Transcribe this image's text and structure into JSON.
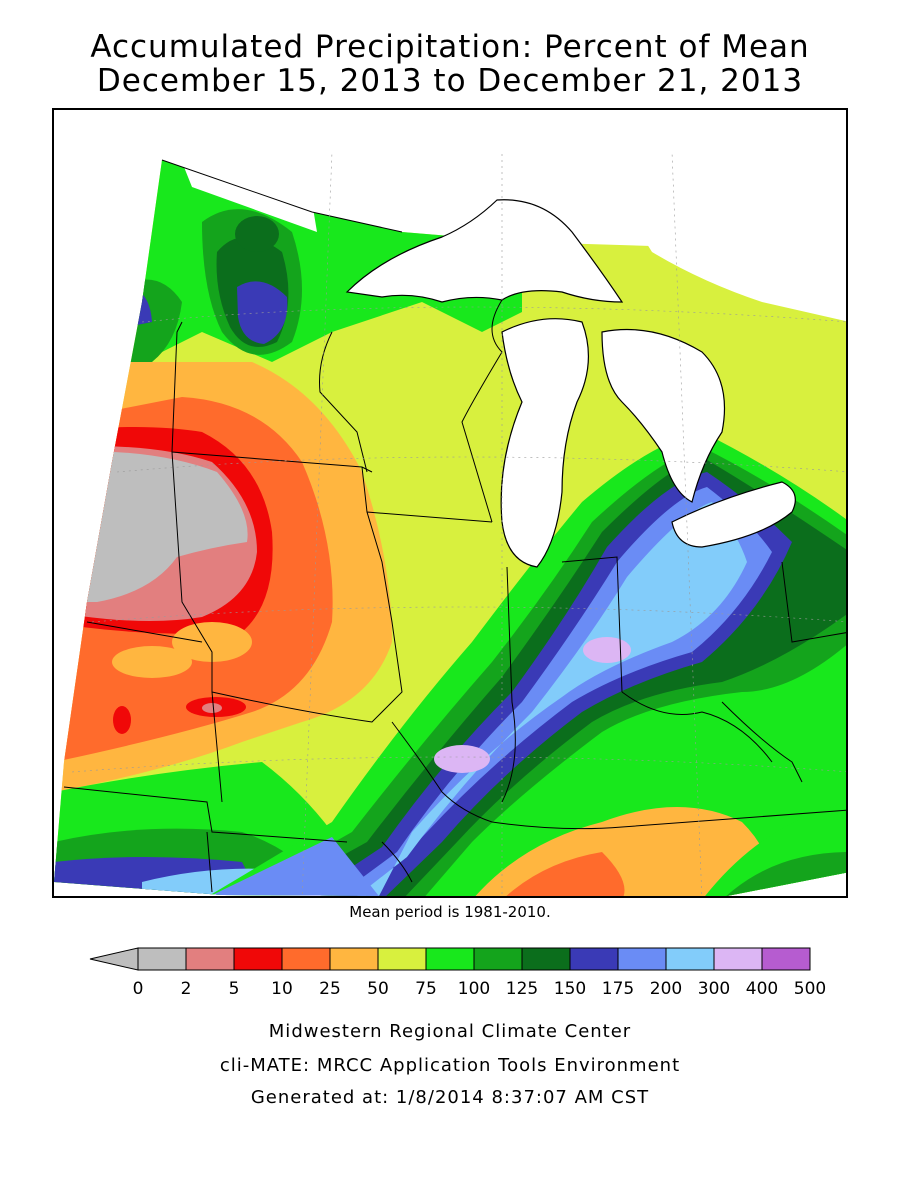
{
  "title": {
    "line1": "Accumulated Precipitation: Percent of Mean",
    "line2": "December 15, 2013 to December 21, 2013"
  },
  "mean_note": "Mean period is 1981-2010.",
  "legend": {
    "bins": [
      {
        "color": "#bebebe"
      },
      {
        "color": "#e27f7f"
      },
      {
        "color": "#f00808"
      },
      {
        "color": "#ff6b2c"
      },
      {
        "color": "#ffb640"
      },
      {
        "color": "#d8f03e"
      },
      {
        "color": "#18e81c"
      },
      {
        "color": "#14a41c"
      },
      {
        "color": "#0b6e1c"
      },
      {
        "color": "#3a3ab6"
      },
      {
        "color": "#6a8cf5"
      },
      {
        "color": "#82ccfa"
      },
      {
        "color": "#dcb6f4"
      },
      {
        "color": "#b65cd0"
      }
    ],
    "ticks": [
      "0",
      "2",
      "5",
      "10",
      "25",
      "50",
      "75",
      "100",
      "125",
      "150",
      "175",
      "200",
      "300",
      "400",
      "500"
    ]
  },
  "footer": {
    "line1": "Midwestern Regional Climate Center",
    "line2": "cli-MATE: MRCC Application Tools Environment",
    "line3": "Generated at: 1/8/2014 8:37:07 AM CST"
  }
}
